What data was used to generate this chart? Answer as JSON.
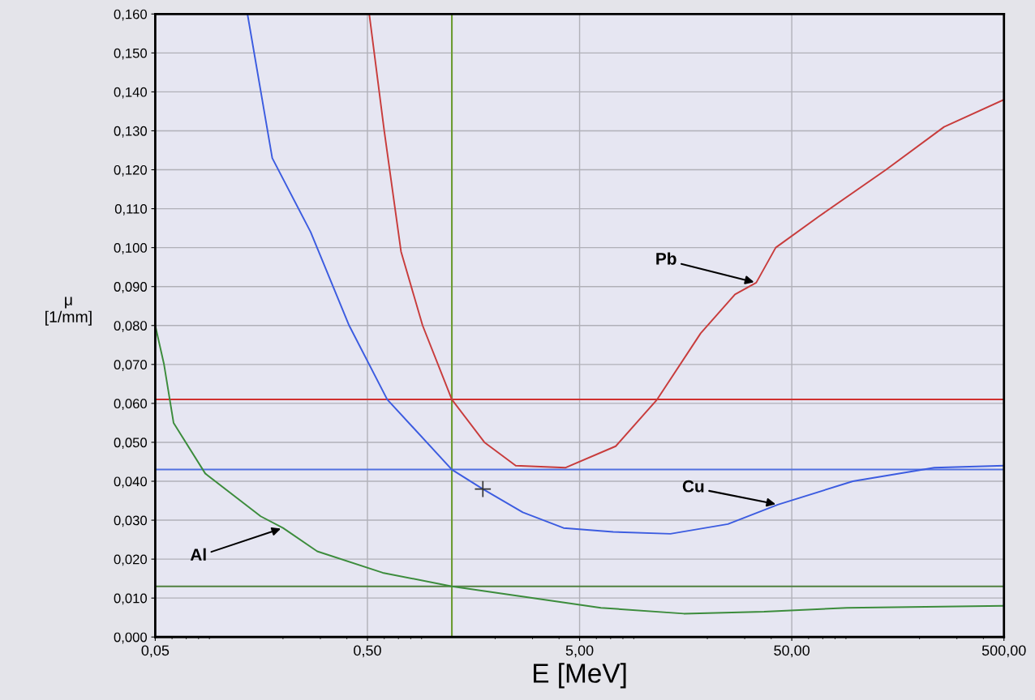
{
  "chart_data": {
    "type": "line",
    "xlabel": "E [MeV]",
    "ylabel": "μ\n[1/mm]",
    "log": "x",
    "grid": true,
    "legend": false,
    "marker": "none",
    "line_style": "solid",
    "xlim": [
      0.05,
      500
    ],
    "xticks": [
      {
        "value": 0.05,
        "label": "0,05"
      },
      {
        "value": 0.5,
        "label": "0,50"
      },
      {
        "value": 5,
        "label": "5,00"
      },
      {
        "value": 50,
        "label": "50,00"
      },
      {
        "value": 500,
        "label": "500,00"
      }
    ],
    "ylim": [
      0,
      0.16
    ],
    "yticks": [
      {
        "value": 0,
        "label": "0,000"
      },
      {
        "value": 0.01,
        "label": "0,010"
      },
      {
        "value": 0.02,
        "label": "0,020"
      },
      {
        "value": 0.03,
        "label": "0,030"
      },
      {
        "value": 0.04,
        "label": "0,040"
      },
      {
        "value": 0.05,
        "label": "0,050"
      },
      {
        "value": 0.06,
        "label": "0,060"
      },
      {
        "value": 0.07,
        "label": "0,070"
      },
      {
        "value": 0.08,
        "label": "0,080"
      },
      {
        "value": 0.09,
        "label": "0,090"
      },
      {
        "value": 0.1,
        "label": "0,100"
      },
      {
        "value": 0.11,
        "label": "0,110"
      },
      {
        "value": 0.12,
        "label": "0,120"
      },
      {
        "value": 0.13,
        "label": "0,130"
      },
      {
        "value": 0.14,
        "label": "0,140"
      },
      {
        "value": 0.15,
        "label": "0,150"
      },
      {
        "value": 0.16,
        "label": "0,160"
      }
    ],
    "series": [
      {
        "color": "#c83c3c",
        "x": [
          0.51,
          0.6,
          0.72,
          0.91,
          1.25,
          1.78,
          2.5,
          4.3,
          7.4,
          11.6,
          18.6,
          27,
          34,
          42,
          67,
          139,
          261,
          500
        ],
        "values": [
          0.16,
          0.13,
          0.099,
          0.08,
          0.061,
          0.05,
          0.044,
          0.0435,
          0.049,
          0.061,
          0.078,
          0.088,
          0.091,
          0.1,
          0.108,
          0.12,
          0.131,
          0.138
        ]
      },
      {
        "color": "#3c5ce0",
        "x": [
          0.136,
          0.178,
          0.27,
          0.41,
          0.62,
          1.25,
          1.75,
          2.7,
          4.2,
          7.2,
          13.4,
          25,
          43,
          97,
          235,
          500
        ],
        "values": [
          0.16,
          0.123,
          0.104,
          0.08,
          0.061,
          0.043,
          0.038,
          0.032,
          0.028,
          0.027,
          0.0265,
          0.029,
          0.034,
          0.04,
          0.0435,
          0.044
        ]
      },
      {
        "color": "#3c8c3c",
        "x": [
          0.05,
          0.055,
          0.061,
          0.086,
          0.157,
          0.2,
          0.29,
          0.59,
          1.25,
          2.6,
          6.3,
          15.5,
          37,
          91,
          500
        ],
        "values": [
          0.08,
          0.07,
          0.055,
          0.042,
          0.031,
          0.028,
          0.022,
          0.0165,
          0.013,
          0.0105,
          0.0075,
          0.006,
          0.0065,
          0.0075,
          0.008
        ]
      },
      {
        "type": "scatter",
        "marker": "cross",
        "color": "#333333",
        "x": [
          1.75
        ],
        "values": [
          0.038
        ]
      }
    ],
    "ref_lines": [
      {
        "axis": "y",
        "value": 0.061,
        "color": "#d03030"
      },
      {
        "axis": "y",
        "value": 0.043,
        "color": "#5070e0"
      },
      {
        "axis": "y",
        "value": 0.013,
        "color": "#508040"
      },
      {
        "axis": "x",
        "value": 1.25,
        "color": "#6a9a30"
      }
    ],
    "annotations": [
      {
        "text": "Pb",
        "x": 34,
        "y": 0.091
      },
      {
        "text": "Cu",
        "x": 43,
        "y": 0.034
      },
      {
        "text": "Al",
        "x": 0.2,
        "y": 0.028
      }
    ]
  }
}
